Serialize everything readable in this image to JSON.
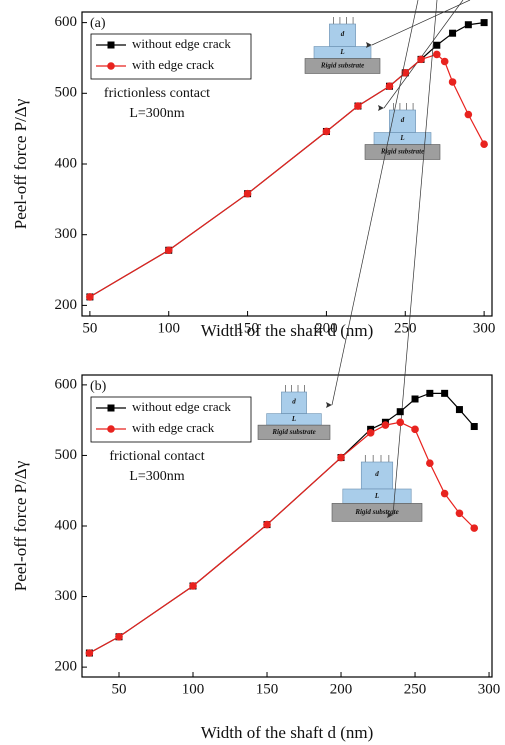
{
  "chart_data": [
    {
      "type": "line",
      "panel_label": "(a)",
      "annotations": [
        "frictionless contact",
        "L=300nm"
      ],
      "x_label": "Width of the shaft d (nm)",
      "y_label": "Peel-off force P/Δγ",
      "inset_labels": [
        "d",
        "L",
        "Rigid substrate"
      ],
      "xlim": [
        45,
        305
      ],
      "ylim": [
        185,
        615
      ],
      "xticks": [
        50,
        100,
        150,
        200,
        250,
        300
      ],
      "yticks": [
        200,
        300,
        400,
        500,
        600
      ],
      "legend": "upper left",
      "series": [
        {
          "name": "without edge crack",
          "color": "#000000",
          "marker": "square",
          "x": [
            50,
            100,
            150,
            200,
            220,
            240,
            250,
            260,
            270,
            280,
            290,
            300
          ],
          "values": [
            212,
            278,
            358,
            446,
            482,
            510,
            529,
            548,
            568,
            585,
            597,
            600
          ]
        },
        {
          "name": "with edge crack",
          "color": "#e8231f",
          "marker": "circle",
          "x": [
            50,
            100,
            150,
            200,
            220,
            240,
            250,
            260,
            270,
            275,
            280,
            290,
            300
          ],
          "values": [
            212,
            278,
            358,
            446,
            482,
            510,
            529,
            548,
            555,
            545,
            516,
            470,
            428
          ]
        }
      ]
    },
    {
      "type": "line",
      "panel_label": "(b)",
      "annotations": [
        "frictional contact",
        "L=300nm"
      ],
      "x_label": "Width of the shaft d (nm)",
      "y_label": "Peel-off force P/Δγ",
      "inset_labels": [
        "d",
        "L",
        "Rigid substrate"
      ],
      "xlim": [
        25,
        302
      ],
      "ylim": [
        186,
        614
      ],
      "xticks": [
        50,
        100,
        150,
        200,
        250,
        300
      ],
      "yticks": [
        200,
        300,
        400,
        500,
        600
      ],
      "legend": "upper left",
      "series": [
        {
          "name": "without edge crack",
          "color": "#000000",
          "marker": "square",
          "x": [
            30,
            50,
            100,
            150,
            200,
            220,
            230,
            240,
            250,
            260,
            270,
            280,
            290
          ],
          "values": [
            220,
            243,
            315,
            402,
            497,
            537,
            547,
            562,
            580,
            588,
            588,
            565,
            541
          ]
        },
        {
          "name": "with edge crack",
          "color": "#e8231f",
          "marker": "circle",
          "x": [
            30,
            50,
            100,
            150,
            200,
            220,
            230,
            240,
            250,
            260,
            270,
            280,
            290
          ],
          "values": [
            220,
            243,
            315,
            402,
            497,
            532,
            543,
            547,
            537,
            489,
            446,
            418,
            397
          ]
        }
      ]
    }
  ]
}
